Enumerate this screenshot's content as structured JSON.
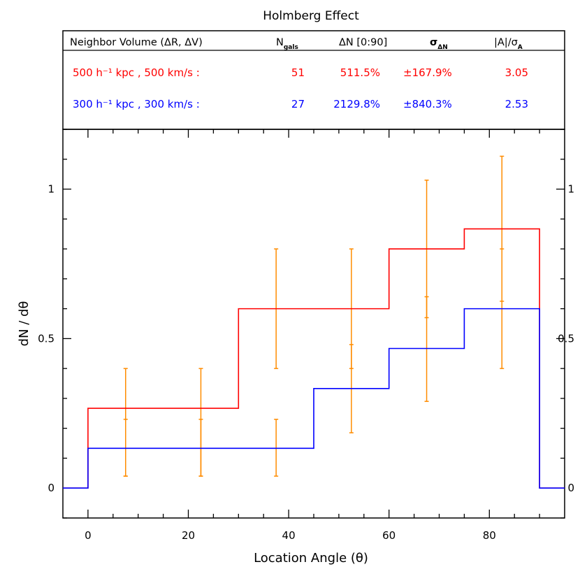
{
  "chart_data": {
    "type": "line",
    "title": "Holmberg Effect",
    "xlabel": "Location Angle (θ)",
    "ylabel": "dN / dθ",
    "xlim": [
      -5,
      95
    ],
    "ylim": [
      -0.1,
      1.2
    ],
    "xticks": [
      0,
      20,
      40,
      60,
      80
    ],
    "yticks": [
      0,
      0.5,
      1
    ],
    "ytick_labels": [
      "0",
      "0.5",
      "1"
    ],
    "table": {
      "headers": [
        "Neighbor Volume (ΔR, ΔV)",
        "N",
        "gals",
        "ΔN [0:90]",
        "σ",
        "ΔN",
        "|A|/σ",
        "A"
      ],
      "rows": [
        {
          "volume": "500 h⁻¹ kpc , 500 km/s :",
          "ngals": "51",
          "dn": "511.5%",
          "sigma": "±167.9%",
          "ratio": "3.05",
          "color": "#ff0000"
        },
        {
          "volume": "300 h⁻¹ kpc , 300 km/s :",
          "ngals": "27",
          "dn": "2129.8%",
          "sigma": "±840.3%",
          "ratio": "2.53",
          "color": "#0000ff"
        }
      ]
    },
    "bin_edges": [
      0,
      15,
      30,
      45,
      60,
      75,
      90
    ],
    "series": [
      {
        "color": "#ff0000",
        "values": [
          0.267,
          0.267,
          0.6,
          0.6,
          0.8,
          0.867
        ]
      },
      {
        "color": "#0000ff",
        "values": [
          0.133,
          0.133,
          0.133,
          0.333,
          0.467,
          0.6
        ]
      }
    ],
    "errorbars": {
      "color": "#ff8c00",
      "x": [
        7.5,
        22.5,
        37.5,
        52.5,
        67.5,
        82.5
      ],
      "sets": [
        {
          "low": [
            0.04,
            0.04,
            0.4,
            0.4,
            0.57,
            0.625
          ],
          "high": [
            0.4,
            0.4,
            0.8,
            0.8,
            1.03,
            1.11
          ]
        },
        {
          "low": [
            0.04,
            0.04,
            0.04,
            0.185,
            0.29,
            0.4
          ],
          "high": [
            0.23,
            0.23,
            0.23,
            0.48,
            0.64,
            0.8
          ]
        }
      ]
    }
  }
}
